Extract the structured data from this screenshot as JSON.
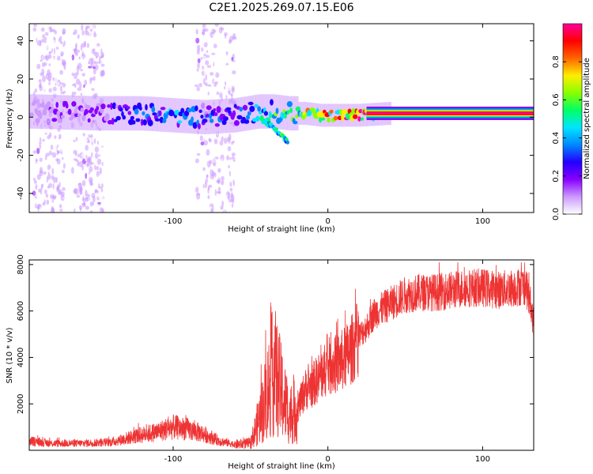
{
  "figure_title": "C2E1.2025.269.07.15.E06",
  "chart_data": [
    {
      "type": "heatmap",
      "title": "C2E1.2025.269.07.15.E06",
      "xlabel": "Height of straight line (km)",
      "ylabel": "Frequency (Hz)",
      "xlim": [
        -193,
        133
      ],
      "ylim": [
        -50,
        49
      ],
      "xticks": [
        -100,
        0,
        100
      ],
      "yticks": [
        -40,
        -20,
        0,
        20,
        40
      ],
      "colorbar": {
        "label": "Normalized spectral amplitude",
        "range": [
          0.0,
          1.0
        ],
        "ticks": [
          "0.0",
          "0.2",
          "0.4",
          "0.6",
          "0.8"
        ],
        "colors": [
          "#ffffff",
          "#cc99ff",
          "#8800ff",
          "#2200ff",
          "#0088ff",
          "#00e5ff",
          "#00ff66",
          "#88ff00",
          "#ffee00",
          "#ff6600",
          "#ff0000",
          "#ff0099"
        ]
      },
      "ridge": {
        "description": "dominant frequency band vs height",
        "x": [
          -190,
          -150,
          -120,
          -100,
          -80,
          -60,
          -45,
          -35,
          -25,
          -15,
          -5,
          0,
          20,
          40,
          80,
          133
        ],
        "freq_center_hz": [
          3,
          2,
          2,
          1,
          0,
          1,
          3,
          3,
          2,
          2,
          1,
          1,
          1,
          2,
          2,
          2
        ],
        "amplitude": [
          0.15,
          0.2,
          0.35,
          0.4,
          0.35,
          0.3,
          0.45,
          0.55,
          0.6,
          0.65,
          0.75,
          0.8,
          0.85,
          0.9,
          0.95,
          0.95
        ]
      },
      "branch": {
        "x": [
          -42,
          -36,
          -30,
          -26
        ],
        "freq_hz": [
          -2,
          -5,
          -10,
          -13
        ]
      },
      "noise_columns_km": [
        [
          -190,
          -170
        ],
        [
          -165,
          -145
        ],
        [
          -85,
          -60
        ]
      ]
    },
    {
      "type": "line",
      "xlabel": "Height of straight line (km)",
      "ylabel": "SNR (10 * v/v)",
      "xlim": [
        -193,
        133
      ],
      "ylim": [
        0,
        8200
      ],
      "xticks": [
        -100,
        0,
        100
      ],
      "yticks": [
        2000,
        4000,
        6000,
        8000
      ],
      "series": [
        {
          "name": "SNR",
          "color": "#ee3333",
          "x": [
            -193,
            -180,
            -160,
            -140,
            -125,
            -110,
            -100,
            -90,
            -80,
            -70,
            -60,
            -50,
            -42,
            -35,
            -30,
            -25,
            -20,
            -15,
            -10,
            -5,
            0,
            5,
            10,
            15,
            20,
            25,
            30,
            40,
            50,
            60,
            70,
            80,
            90,
            100,
            110,
            120,
            128,
            133
          ],
          "values": [
            400,
            300,
            300,
            350,
            600,
            800,
            1000,
            900,
            700,
            400,
            250,
            300,
            1800,
            3500,
            2500,
            1500,
            1700,
            2600,
            2800,
            3200,
            3600,
            3700,
            3900,
            4300,
            4900,
            5300,
            5900,
            6300,
            6700,
            6800,
            6800,
            6900,
            7000,
            7000,
            6900,
            7000,
            7100,
            5500
          ]
        }
      ]
    }
  ]
}
